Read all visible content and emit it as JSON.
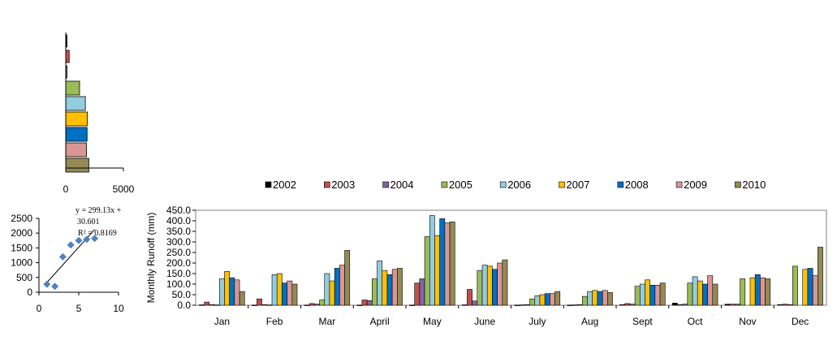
{
  "chart_data": [
    {
      "type": "bar",
      "orientation": "horizontal",
      "categories": [
        "2002",
        "2003",
        "2004",
        "2005",
        "2006",
        "2007",
        "2008",
        "2009",
        "2010"
      ],
      "values": [
        30,
        300,
        80,
        1200,
        1700,
        1870,
        1850,
        1800,
        2000
      ],
      "xlim": [
        0,
        5000
      ],
      "xticks": [
        "0",
        "5000"
      ],
      "colors": [
        "#000000",
        "#c0504d",
        "#8064a2",
        "#9bbb59",
        "#93cddd",
        "#ffc000",
        "#0070c0",
        "#d99694",
        "#948a54"
      ]
    },
    {
      "type": "scatter",
      "points": [
        [
          1,
          270
        ],
        [
          2,
          200
        ],
        [
          3,
          1200
        ],
        [
          4,
          1600
        ],
        [
          5,
          1750
        ],
        [
          6,
          1790
        ],
        [
          7,
          1820
        ]
      ],
      "trendline": {
        "slope": 299.13,
        "intercept": 30.601
      },
      "equation_lines": [
        "y = 299.13x +",
        "30.601"
      ],
      "r2_label": "R² = 0.8169",
      "xlim": [
        0,
        10
      ],
      "ylim": [
        0,
        2500
      ],
      "xticks": [
        "0",
        "5",
        "10"
      ],
      "yticks": [
        "0",
        "500",
        "1000",
        "1500",
        "2000",
        "2500"
      ],
      "marker_color": "#4f81bd"
    },
    {
      "type": "bar",
      "ylabel": "Monthly  Runoff (mm)",
      "ylim": [
        0,
        450
      ],
      "yticks": [
        "0.0",
        "50.0",
        "100.0",
        "150.0",
        "200.0",
        "250.0",
        "300.0",
        "350.0",
        "400.0",
        "450.0"
      ],
      "categories": [
        "Jan",
        "Feb",
        "Mar",
        "April",
        "May",
        "June",
        "July",
        "Aug",
        "Sept",
        "Oct",
        "Nov",
        "Dec"
      ],
      "legend_position": "top",
      "series": [
        {
          "name": "2002",
          "color": "#000000",
          "values": [
            2,
            1,
            1,
            1,
            1,
            2,
            1,
            1,
            3,
            10,
            5,
            3
          ]
        },
        {
          "name": "2003",
          "color": "#c0504d",
          "values": [
            15,
            30,
            8,
            25,
            105,
            75,
            2,
            2,
            8,
            3,
            5,
            5
          ]
        },
        {
          "name": "2004",
          "color": "#8064a2",
          "values": [
            3,
            3,
            5,
            22,
            125,
            20,
            3,
            3,
            5,
            5,
            5,
            3
          ]
        },
        {
          "name": "2005",
          "color": "#9bbb59",
          "values": [
            2,
            2,
            25,
            125,
            325,
            165,
            30,
            42,
            90,
            105,
            125,
            185
          ]
        },
        {
          "name": "2006",
          "color": "#93cddd",
          "values": [
            125,
            145,
            150,
            210,
            425,
            190,
            45,
            65,
            100,
            135,
            0,
            0
          ]
        },
        {
          "name": "2007",
          "color": "#ffc000",
          "values": [
            160,
            150,
            115,
            165,
            330,
            185,
            50,
            70,
            120,
            115,
            130,
            170
          ]
        },
        {
          "name": "2008",
          "color": "#0070c0",
          "values": [
            130,
            105,
            175,
            145,
            410,
            170,
            55,
            65,
            95,
            100,
            145,
            175
          ]
        },
        {
          "name": "2009",
          "color": "#d99694",
          "values": [
            120,
            115,
            190,
            170,
            390,
            200,
            55,
            70,
            95,
            140,
            130,
            140
          ]
        },
        {
          "name": "2010",
          "color": "#948a54",
          "values": [
            65,
            100,
            260,
            175,
            395,
            215,
            65,
            60,
            105,
            100,
            125,
            275
          ]
        }
      ]
    }
  ]
}
